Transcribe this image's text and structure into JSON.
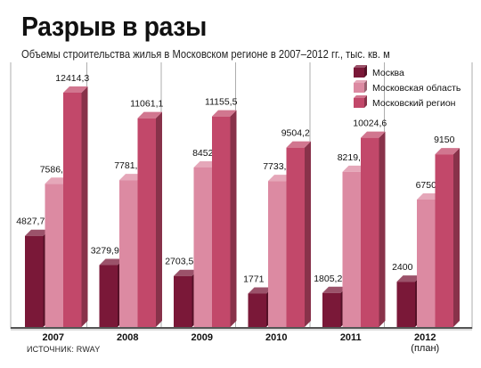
{
  "header": {
    "title": "Разрыв в разы",
    "subtitle": "Объемы строительства жилья в Московском регионе в 2007–2012 гг., тыс. кв. м"
  },
  "footer": {
    "source": "ИСТОЧНИК: RWAY"
  },
  "colors": {
    "moscow": "#7a1838",
    "oblast": "#dc8aa2",
    "region": "#c2486a",
    "grid": "#9a9a9a"
  },
  "chart_data": {
    "type": "bar",
    "categories": [
      "2007",
      "2008",
      "2009",
      "2010",
      "2011",
      "2012\n(план)"
    ],
    "category_labels": [
      [
        "2007"
      ],
      [
        "2008"
      ],
      [
        "2009"
      ],
      [
        "2010"
      ],
      [
        "2011"
      ],
      [
        "2012",
        "(план)"
      ]
    ],
    "series": [
      {
        "name": "Москва",
        "values": [
          4827.7,
          3279.9,
          2703.5,
          1771,
          1805.2,
          2400
        ],
        "labels": [
          "4827,7",
          "3279,9",
          "2703,5",
          "1771",
          "1805,2",
          "2400"
        ]
      },
      {
        "name": "Московская область",
        "values": [
          7586.6,
          7781.2,
          8452,
          7733.2,
          8219.4,
          6750
        ],
        "labels": [
          "7586,6",
          "7781,2",
          "8452",
          "7733,2",
          "8219,4",
          "6750"
        ]
      },
      {
        "name": "Московский регион",
        "values": [
          12414.3,
          11061.1,
          11155.5,
          9504.2,
          10024.6,
          9150
        ],
        "labels": [
          "12414,3",
          "11061,1",
          "11155,5",
          "9504,2",
          "10024,6",
          "9150"
        ]
      }
    ],
    "ylim": [
      0,
      13000
    ],
    "grid": true,
    "legend": "top-right"
  }
}
